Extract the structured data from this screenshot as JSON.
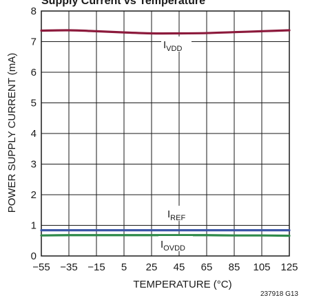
{
  "title_fragment": "Supply Current vs Temperature",
  "figure_id": "237918 G13",
  "colors": {
    "ivdd": "#8c1a3c",
    "iref": "#3a56a8",
    "iovdd": "#2e8a4a",
    "grid": "#1a1a1a"
  },
  "chart_data": {
    "type": "line",
    "title": "",
    "xlabel": "TEMPERATURE (°C)",
    "ylabel": "POWER SUPPLY CURRENT (mA)",
    "xlim": [
      -55,
      125
    ],
    "ylim": [
      0,
      8
    ],
    "xticks": [
      -55,
      -35,
      -15,
      5,
      25,
      45,
      65,
      85,
      105,
      125
    ],
    "yticks": [
      0,
      1,
      2,
      3,
      4,
      5,
      6,
      7,
      8
    ],
    "grid": true,
    "series": [
      {
        "key": "ivdd",
        "label_main": "I",
        "label_sub": "VDD",
        "x": [
          -55,
          -35,
          -15,
          5,
          25,
          45,
          65,
          85,
          105,
          125
        ],
        "y": [
          7.36,
          7.37,
          7.34,
          7.3,
          7.27,
          7.27,
          7.28,
          7.31,
          7.34,
          7.37
        ]
      },
      {
        "key": "iref",
        "label_main": "I",
        "label_sub": "REF",
        "x": [
          -55,
          -35,
          -15,
          5,
          25,
          45,
          65,
          85,
          105,
          125
        ],
        "y": [
          0.84,
          0.84,
          0.84,
          0.84,
          0.84,
          0.84,
          0.84,
          0.84,
          0.84,
          0.84
        ]
      },
      {
        "key": "iovdd",
        "label_main": "I",
        "label_sub": "OVDD",
        "x": [
          -55,
          -35,
          -15,
          5,
          25,
          45,
          65,
          85,
          105,
          125
        ],
        "y": [
          0.67,
          0.68,
          0.68,
          0.68,
          0.68,
          0.68,
          0.68,
          0.67,
          0.67,
          0.66
        ]
      }
    ]
  }
}
